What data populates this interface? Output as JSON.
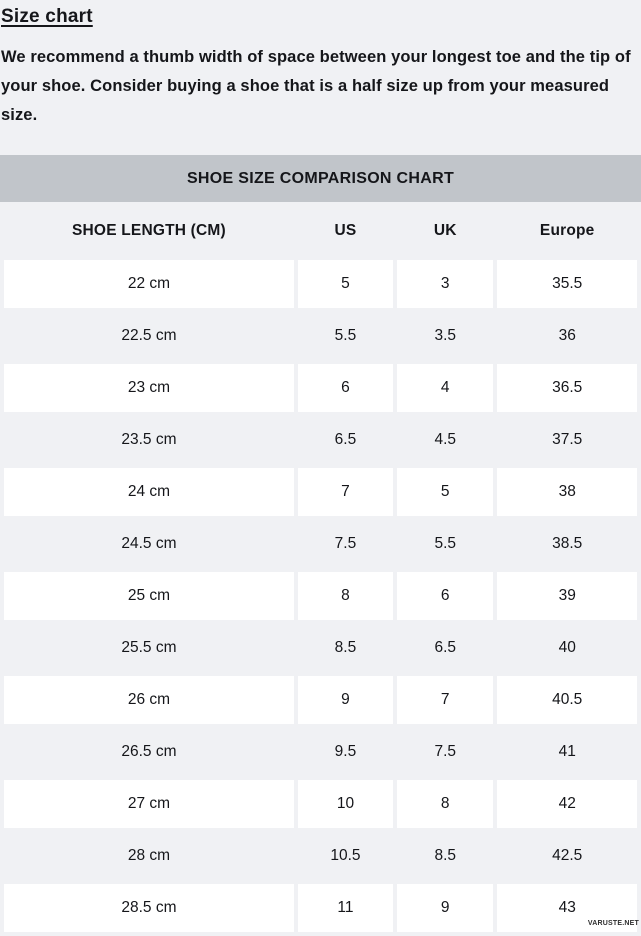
{
  "page": {
    "title": "Size chart",
    "intro": "We recommend a thumb width of space between your longest toe and the tip of your shoe. Consider buying a shoe that is a half size up from your measured size.",
    "watermark": "VARUSTE.NET"
  },
  "table": {
    "title": "SHOE SIZE COMPARISON CHART",
    "columns": [
      "SHOE LENGTH (CM)",
      "US",
      "UK",
      "Europe"
    ],
    "rows": [
      [
        "22 cm",
        "5",
        "3",
        "35.5"
      ],
      [
        "22.5 cm",
        "5.5",
        "3.5",
        "36"
      ],
      [
        "23 cm",
        "6",
        "4",
        "36.5"
      ],
      [
        "23.5 cm",
        "6.5",
        "4.5",
        "37.5"
      ],
      [
        "24 cm",
        "7",
        "5",
        "38"
      ],
      [
        "24.5 cm",
        "7.5",
        "5.5",
        "38.5"
      ],
      [
        "25 cm",
        "8",
        "6",
        "39"
      ],
      [
        "25.5 cm",
        "8.5",
        "6.5",
        "40"
      ],
      [
        "26 cm",
        "9",
        "7",
        "40.5"
      ],
      [
        "26.5 cm",
        "9.5",
        "7.5",
        "41"
      ],
      [
        "27 cm",
        "10",
        "8",
        "42"
      ],
      [
        "28 cm",
        "10.5",
        "8.5",
        "42.5"
      ],
      [
        "28.5 cm",
        "11",
        "9",
        "43"
      ]
    ]
  },
  "colors": {
    "page_bg": "#f0f1f4",
    "band_bg": "#c1c5ca",
    "row_white": "#ffffff",
    "text": "#15161a"
  }
}
